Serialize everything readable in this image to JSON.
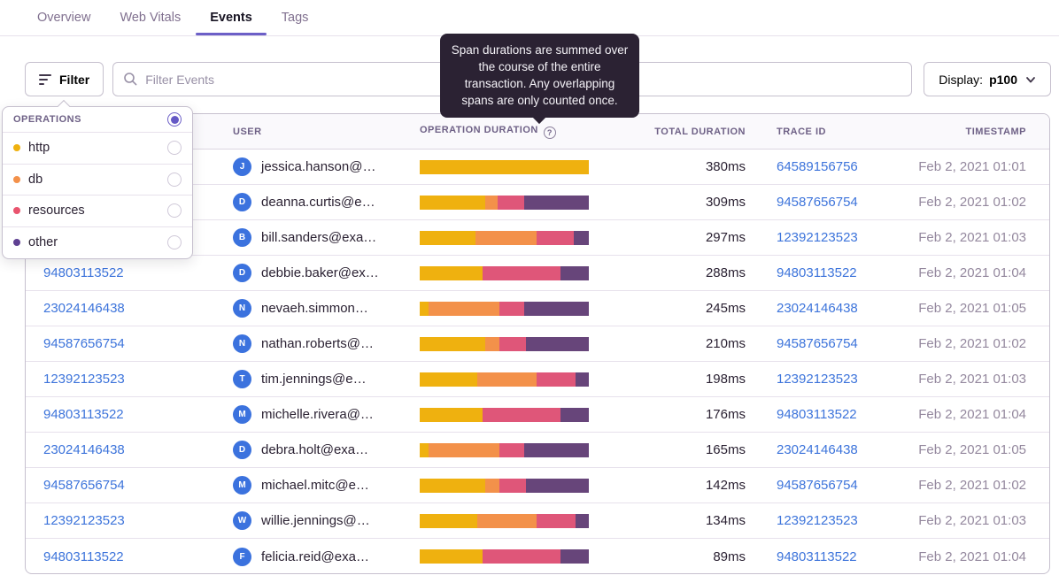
{
  "tabs": [
    {
      "label": "Overview",
      "active": false
    },
    {
      "label": "Web Vitals",
      "active": false
    },
    {
      "label": "Events",
      "active": true
    },
    {
      "label": "Tags",
      "active": false
    }
  ],
  "toolbar": {
    "filter_label": "Filter",
    "search_placeholder": "Filter Events",
    "display_label": "Display:",
    "display_value": "p100"
  },
  "tooltip": {
    "text": "Span durations are summed over the course of the entire transaction. Any overlapping spans are only counted once."
  },
  "operations_menu": {
    "header": "OPERATIONS",
    "items": [
      {
        "label": "http",
        "color": "#EFB10F"
      },
      {
        "label": "db",
        "color": "#F3914A"
      },
      {
        "label": "resources",
        "color": "#E9546E"
      },
      {
        "label": "other",
        "color": "#5F4092"
      }
    ]
  },
  "operation_colors": {
    "http": "#EFB10F",
    "db": "#F3914A",
    "resources": "#DF5679",
    "other": "#67457A"
  },
  "colors": {
    "accent": "#6C5FC7",
    "link": "#3D74DB",
    "timestamp": "#94889E",
    "tooltip_bg": "#2B2233",
    "avatar": "#3B72DE"
  },
  "table": {
    "columns": [
      "",
      "USER",
      "OPERATION DURATION",
      "TOTAL DURATION",
      "TRACE ID",
      "TIMESTAMP"
    ],
    "rows": [
      {
        "id": "64589156756",
        "avatar_letter": "J",
        "user": "jessica.hanson@…",
        "breakdown": {
          "http": 100,
          "db": 0,
          "resources": 0,
          "other": 0
        },
        "total": "380ms",
        "trace_id": "64589156756",
        "timestamp": "Feb 2, 2021 01:01"
      },
      {
        "id": "94587656754",
        "avatar_letter": "D",
        "user": "deanna.curtis@e…",
        "breakdown": {
          "http": 39,
          "db": 7,
          "resources": 16,
          "other": 38
        },
        "total": "309ms",
        "trace_id": "94587656754",
        "timestamp": "Feb 2, 2021 01:02"
      },
      {
        "id": "12392123523",
        "avatar_letter": "B",
        "user": "bill.sanders@exa…",
        "breakdown": {
          "http": 33,
          "db": 36,
          "resources": 22,
          "other": 9
        },
        "total": "297ms",
        "trace_id": "12392123523",
        "timestamp": "Feb 2, 2021 01:03"
      },
      {
        "id": "94803113522",
        "avatar_letter": "D",
        "user": "debbie.baker@ex…",
        "breakdown": {
          "http": 37,
          "db": 0,
          "resources": 46,
          "other": 17
        },
        "total": "288ms",
        "trace_id": "94803113522",
        "timestamp": "Feb 2, 2021 01:04"
      },
      {
        "id": "23024146438",
        "avatar_letter": "N",
        "user": "nevaeh.simmon…",
        "breakdown": {
          "http": 5,
          "db": 42,
          "resources": 15,
          "other": 38
        },
        "total": "245ms",
        "trace_id": "23024146438",
        "timestamp": "Feb 2, 2021 01:05"
      },
      {
        "id": "94587656754",
        "avatar_letter": "N",
        "user": "nathan.roberts@…",
        "breakdown": {
          "http": 39,
          "db": 8,
          "resources": 16,
          "other": 37
        },
        "total": "210ms",
        "trace_id": "94587656754",
        "timestamp": "Feb 2, 2021 01:02"
      },
      {
        "id": "12392123523",
        "avatar_letter": "T",
        "user": "tim.jennings@e…",
        "breakdown": {
          "http": 34,
          "db": 35,
          "resources": 23,
          "other": 8
        },
        "total": "198ms",
        "trace_id": "12392123523",
        "timestamp": "Feb 2, 2021 01:03"
      },
      {
        "id": "94803113522",
        "avatar_letter": "M",
        "user": "michelle.rivera@…",
        "breakdown": {
          "http": 37,
          "db": 0,
          "resources": 46,
          "other": 17
        },
        "total": "176ms",
        "trace_id": "94803113522",
        "timestamp": "Feb 2, 2021 01:04"
      },
      {
        "id": "23024146438",
        "avatar_letter": "D",
        "user": "debra.holt@exa…",
        "breakdown": {
          "http": 5,
          "db": 42,
          "resources": 15,
          "other": 38
        },
        "total": "165ms",
        "trace_id": "23024146438",
        "timestamp": "Feb 2, 2021 01:05"
      },
      {
        "id": "94587656754",
        "avatar_letter": "M",
        "user": "michael.mitc@e…",
        "breakdown": {
          "http": 39,
          "db": 8,
          "resources": 16,
          "other": 37
        },
        "total": "142ms",
        "trace_id": "94587656754",
        "timestamp": "Feb 2, 2021 01:02"
      },
      {
        "id": "12392123523",
        "avatar_letter": "W",
        "user": "willie.jennings@…",
        "breakdown": {
          "http": 34,
          "db": 35,
          "resources": 23,
          "other": 8
        },
        "total": "134ms",
        "trace_id": "12392123523",
        "timestamp": "Feb 2, 2021 01:03"
      },
      {
        "id": "94803113522",
        "avatar_letter": "F",
        "user": "felicia.reid@exa…",
        "breakdown": {
          "http": 37,
          "db": 0,
          "resources": 46,
          "other": 17
        },
        "total": "89ms",
        "trace_id": "94803113522",
        "timestamp": "Feb 2, 2021 01:04"
      }
    ]
  }
}
